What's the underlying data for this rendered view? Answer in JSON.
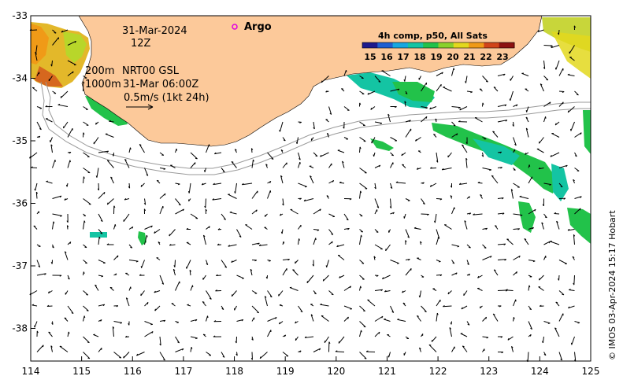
{
  "map": {
    "date_line": "31-Mar-2024",
    "time_line": "12Z",
    "contour_shallow": "200m",
    "contour_deep": "1000m",
    "current_source": "NRT00 GSL",
    "current_time": "31-Mar 06:00Z",
    "scale_text": "0.5m/s (1kt 24h)",
    "argo_label": "Argo",
    "credit": "© IMOS 03-Apr-2024 15:17 Hobart"
  },
  "colorbar": {
    "title": "4h comp, p50, All Sats",
    "ticks": [
      "15",
      "16",
      "17",
      "18",
      "19",
      "20",
      "21",
      "22",
      "23"
    ],
    "colors": [
      "#1d1a8c",
      "#1f5fd1",
      "#16a7e0",
      "#14c4a3",
      "#22c24a",
      "#8ad12b",
      "#e3d81d",
      "#f09a17",
      "#d0441a",
      "#8c1212"
    ]
  },
  "axes": {
    "x_ticks": [
      "114",
      "115",
      "116",
      "117",
      "118",
      "119",
      "120",
      "121",
      "122",
      "123",
      "124",
      "125"
    ],
    "y_ticks": [
      "-33",
      "-34",
      "-35",
      "-36",
      "-37",
      "-38"
    ]
  },
  "colors": {
    "land": "#fcc99a",
    "contour": "#9a9a9a",
    "argo": "#e000e0"
  }
}
